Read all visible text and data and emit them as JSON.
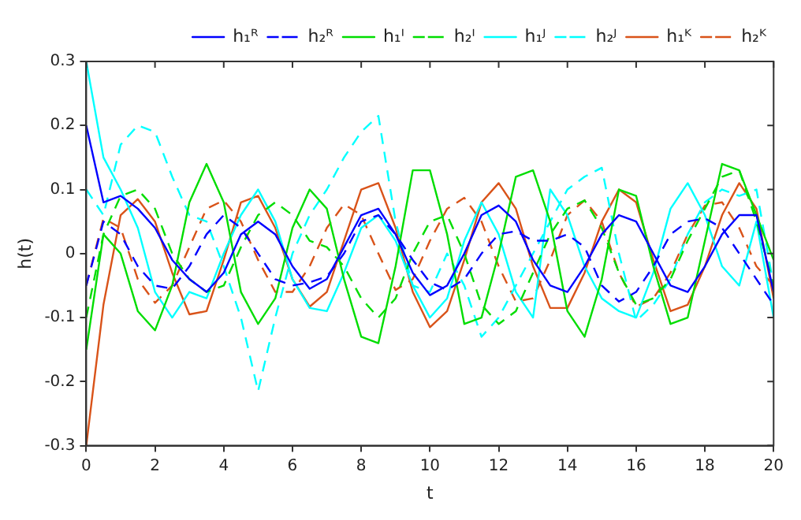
{
  "chart_data": {
    "type": "line",
    "xlabel": "t",
    "ylabel": "h(t)",
    "xlim": [
      0,
      20
    ],
    "xticks": [
      0,
      2,
      4,
      6,
      8,
      10,
      12,
      14,
      16,
      18,
      20
    ],
    "ylim": [
      -0.3,
      0.3
    ],
    "yticks": [
      -0.3,
      -0.2,
      -0.1,
      0,
      0.1,
      0.2,
      0.3
    ],
    "grid": false,
    "legend": "top right",
    "marker": "none",
    "x": [
      0,
      0.5,
      1,
      1.5,
      2,
      2.5,
      3,
      3.5,
      4,
      4.5,
      5,
      5.5,
      6,
      6.5,
      7,
      7.5,
      8,
      8.5,
      9,
      9.5,
      10,
      10.5,
      11,
      11.5,
      12,
      12.5,
      13,
      13.5,
      14,
      14.5,
      15,
      15.5,
      16,
      16.5,
      17,
      17.5,
      18,
      18.5,
      19,
      19.5,
      20
    ],
    "series": [
      {
        "name": "h₁ᴿ",
        "color": "#0000ff",
        "line_style": "solid",
        "values": [
          0.2,
          0.08,
          0.09,
          0.07,
          0.04,
          -0.01,
          -0.04,
          -0.06,
          -0.03,
          0.03,
          0.05,
          0.03,
          -0.02,
          -0.055,
          -0.04,
          0.01,
          0.06,
          0.07,
          0.03,
          -0.03,
          -0.065,
          -0.05,
          0,
          0.06,
          0.075,
          0.05,
          -0.01,
          -0.05,
          -0.06,
          -0.02,
          0.03,
          0.06,
          0.05,
          0,
          -0.05,
          -0.06,
          -0.02,
          0.03,
          0.06,
          0.06,
          -0.06
        ]
      },
      {
        "name": "h₂ᴿ",
        "color": "#0000ff",
        "line_style": "dashed",
        "values": [
          -0.05,
          0.05,
          0.03,
          -0.02,
          -0.05,
          -0.055,
          -0.02,
          0.03,
          0.06,
          0.04,
          0,
          -0.04,
          -0.05,
          -0.045,
          -0.036,
          0,
          0.05,
          0.06,
          0.03,
          -0.01,
          -0.045,
          -0.057,
          -0.04,
          0,
          0.03,
          0.035,
          0.02,
          0.02,
          0.03,
          0.01,
          -0.05,
          -0.075,
          -0.06,
          -0.02,
          0.03,
          0.05,
          0.055,
          0.04,
          0,
          -0.04,
          -0.08
        ]
      },
      {
        "name": "h₁ᴵ",
        "color": "#00dd00",
        "line_style": "solid",
        "values": [
          -0.15,
          0.03,
          0,
          -0.09,
          -0.12,
          -0.05,
          0.08,
          0.14,
          0.08,
          -0.06,
          -0.11,
          -0.07,
          0.04,
          0.1,
          0.07,
          -0.04,
          -0.13,
          -0.14,
          -0.02,
          0.13,
          0.13,
          0.03,
          -0.11,
          -0.1,
          0,
          0.12,
          0.13,
          0.05,
          -0.09,
          -0.13,
          -0.04,
          0.1,
          0.09,
          -0.02,
          -0.11,
          -0.1,
          0.02,
          0.14,
          0.13,
          0.06,
          -0.01
        ]
      },
      {
        "name": "h₂ᴵ",
        "color": "#00dd00",
        "line_style": "dashed",
        "values": [
          -0.1,
          0.03,
          0.09,
          0.1,
          0.07,
          0,
          -0.04,
          -0.06,
          -0.05,
          0.01,
          0.06,
          0.08,
          0.06,
          0.02,
          0.01,
          -0.02,
          -0.07,
          -0.1,
          -0.07,
          0,
          0.05,
          0.06,
          0,
          -0.08,
          -0.11,
          -0.09,
          -0.03,
          0.03,
          0.07,
          0.083,
          0.04,
          -0.03,
          -0.08,
          -0.07,
          -0.04,
          0.02,
          0.07,
          0.12,
          0.13,
          0.05,
          -0.05
        ]
      },
      {
        "name": "h₁ᴶ",
        "color": "#00ffff",
        "line_style": "solid",
        "values": [
          0.3,
          0.15,
          0.1,
          0.04,
          -0.06,
          -0.1,
          -0.06,
          -0.07,
          0,
          0.06,
          0.1,
          0.05,
          -0.04,
          -0.085,
          -0.09,
          -0.03,
          0.04,
          0.06,
          0.02,
          -0.05,
          -0.1,
          -0.07,
          0.02,
          0.08,
          0.03,
          -0.06,
          -0.1,
          0.1,
          0.06,
          -0.02,
          -0.07,
          -0.09,
          -0.1,
          -0.03,
          0.07,
          0.11,
          0.06,
          -0.02,
          -0.05,
          0.05,
          -0.1
        ]
      },
      {
        "name": "h₂ᴶ",
        "color": "#00ffff",
        "line_style": "dashed",
        "values": [
          0.1,
          0.06,
          0.17,
          0.2,
          0.19,
          0.12,
          0.06,
          0.05,
          -0.02,
          -0.1,
          -0.215,
          -0.1,
          0,
          0.06,
          0.1,
          0.15,
          0.19,
          0.215,
          0.05,
          -0.05,
          -0.06,
          0,
          -0.05,
          -0.13,
          -0.1,
          -0.05,
          0,
          0.05,
          0.1,
          0.12,
          0.134,
          0,
          -0.105,
          -0.08,
          -0.04,
          0.03,
          0.08,
          0.1,
          0.09,
          0.1,
          -0.05
        ]
      },
      {
        "name": "h₁ᴷ",
        "color": "#d95319",
        "line_style": "solid",
        "values": [
          -0.3,
          -0.08,
          0.06,
          0.085,
          0.05,
          -0.03,
          -0.095,
          -0.09,
          -0.01,
          0.08,
          0.09,
          0.04,
          -0.04,
          -0.083,
          -0.06,
          0.02,
          0.1,
          0.11,
          0.04,
          -0.06,
          -0.115,
          -0.09,
          -0.01,
          0.08,
          0.11,
          0.07,
          -0.02,
          -0.085,
          -0.085,
          -0.03,
          0.05,
          0.1,
          0.08,
          -0.01,
          -0.09,
          -0.08,
          -0.02,
          0.06,
          0.11,
          0.07,
          -0.07
        ]
      },
      {
        "name": "h₂ᴷ",
        "color": "#d95319",
        "line_style": "dashed",
        "values": [
          -0.05,
          0.055,
          0.04,
          -0.04,
          -0.077,
          -0.05,
          0.01,
          0.07,
          0.083,
          0.05,
          -0.01,
          -0.06,
          -0.06,
          -0.02,
          0.04,
          0.077,
          0.06,
          0,
          -0.057,
          -0.04,
          0.02,
          0.07,
          0.087,
          0.05,
          -0.02,
          -0.075,
          -0.07,
          -0.01,
          0.06,
          0.083,
          0.05,
          -0.03,
          -0.083,
          -0.07,
          -0.03,
          0.03,
          0.075,
          0.08,
          0.04,
          -0.02,
          -0.05
        ]
      }
    ]
  }
}
